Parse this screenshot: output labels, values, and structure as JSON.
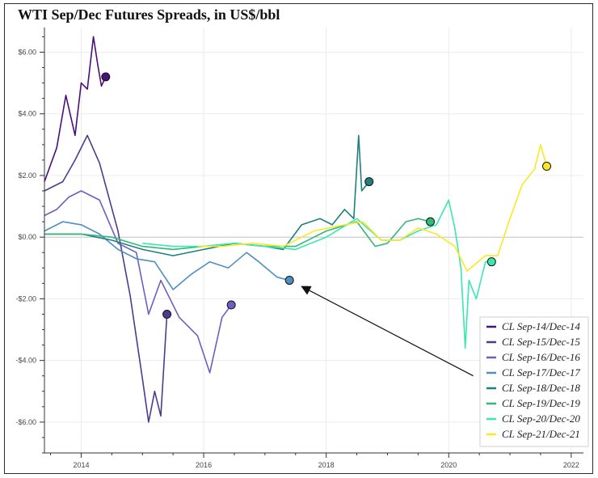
{
  "chart_data": {
    "type": "line",
    "title": "WTI Sep/Dec Futures Spreads, in US$/bbl",
    "xlabel": "",
    "ylabel": "",
    "xlim": [
      2013.4,
      2022.2
    ],
    "ylim": [
      -7.0,
      6.8
    ],
    "x_ticks": [
      2014,
      2016,
      2018,
      2020,
      2022
    ],
    "x_tick_labels": [
      "2014",
      "2016",
      "2018",
      "2020",
      "2022"
    ],
    "y_ticks": [
      6,
      4,
      2,
      0,
      -2,
      -4,
      -6
    ],
    "y_tick_labels": [
      "$6.00",
      "$4.00",
      "$2.00",
      "$0.00",
      "-$2.00",
      "-$4.00",
      "-$6.00"
    ],
    "grid": true,
    "legend_position": "bottom-right",
    "series": [
      {
        "name": "CL Sep-14/Dec-14",
        "color": "#4b0f7a",
        "x": [
          2013.4,
          2013.6,
          2013.75,
          2013.9,
          2014.0,
          2014.1,
          2014.2,
          2014.27,
          2014.33,
          2014.4
        ],
        "y": [
          1.8,
          2.9,
          4.6,
          3.3,
          5.0,
          4.8,
          6.5,
          5.6,
          4.9,
          5.2
        ]
      },
      {
        "name": "CL Sep-15/Dec-15",
        "color": "#4d3b8f",
        "x": [
          2013.4,
          2013.7,
          2013.9,
          2014.1,
          2014.3,
          2014.6,
          2014.8,
          2015.0,
          2015.1,
          2015.2,
          2015.3,
          2015.4
        ],
        "y": [
          1.5,
          1.8,
          2.5,
          3.3,
          2.4,
          0.2,
          -1.9,
          -4.6,
          -6.0,
          -5.0,
          -5.8,
          -2.5
        ]
      },
      {
        "name": "CL Sep-16/Dec-16",
        "color": "#6f5ec2",
        "x": [
          2013.4,
          2013.6,
          2013.8,
          2014.0,
          2014.3,
          2014.6,
          2014.9,
          2015.1,
          2015.3,
          2015.6,
          2015.9,
          2016.1,
          2016.3,
          2016.45
        ],
        "y": [
          0.7,
          0.9,
          1.3,
          1.5,
          1.2,
          -0.2,
          -0.5,
          -2.5,
          -1.4,
          -2.6,
          -3.2,
          -4.4,
          -2.6,
          -2.2
        ]
      },
      {
        "name": "CL Sep-17/Dec-17",
        "color": "#4f8fc1",
        "x": [
          2013.4,
          2013.7,
          2014.0,
          2014.3,
          2014.6,
          2014.9,
          2015.2,
          2015.5,
          2015.8,
          2016.1,
          2016.4,
          2016.7,
          2016.9,
          2017.2,
          2017.4
        ],
        "y": [
          0.2,
          0.5,
          0.4,
          0.1,
          -0.4,
          -0.7,
          -0.8,
          -1.7,
          -1.2,
          -0.8,
          -1.0,
          -0.5,
          -0.8,
          -1.3,
          -1.4
        ]
      },
      {
        "name": "CL Sep-18/Dec-18",
        "color": "#1f7f80",
        "x": [
          2013.4,
          2014.0,
          2014.5,
          2015.0,
          2015.5,
          2016.0,
          2016.5,
          2017.0,
          2017.3,
          2017.6,
          2017.9,
          2018.1,
          2018.3,
          2018.45,
          2018.53,
          2018.58,
          2018.7
        ],
        "y": [
          0.1,
          0.1,
          -0.1,
          -0.4,
          -0.6,
          -0.4,
          -0.2,
          -0.3,
          -0.4,
          0.4,
          0.6,
          0.4,
          0.9,
          0.6,
          3.3,
          1.5,
          1.8
        ]
      },
      {
        "name": "CL Sep-19/Dec-19",
        "color": "#35b779",
        "x": [
          2013.4,
          2014.0,
          2014.5,
          2015.0,
          2015.5,
          2016.0,
          2016.5,
          2017.0,
          2017.5,
          2018.0,
          2018.5,
          2018.8,
          2019.0,
          2019.3,
          2019.5,
          2019.7
        ],
        "y": [
          0.1,
          0.1,
          0.0,
          -0.3,
          -0.4,
          -0.3,
          -0.2,
          -0.3,
          -0.3,
          0.2,
          0.5,
          -0.3,
          -0.2,
          0.5,
          0.6,
          0.5
        ]
      },
      {
        "name": "CL Sep-20/Dec-20",
        "color": "#38e8b0",
        "x": [
          2015.0,
          2015.5,
          2016.0,
          2016.5,
          2017.0,
          2017.5,
          2018.0,
          2018.5,
          2018.9,
          2019.2,
          2019.5,
          2019.8,
          2020.0,
          2020.1,
          2020.2,
          2020.27,
          2020.33,
          2020.45,
          2020.6,
          2020.7
        ],
        "y": [
          -0.2,
          -0.3,
          -0.3,
          -0.2,
          -0.3,
          -0.4,
          0.0,
          0.6,
          -0.1,
          -0.1,
          0.2,
          0.4,
          1.2,
          0.3,
          -1.0,
          -3.6,
          -1.4,
          -2.0,
          -0.8,
          -0.8
        ]
      },
      {
        "name": "CL Sep-21/Dec-21",
        "color": "#fde725",
        "x": [
          2015.9,
          2016.3,
          2016.8,
          2017.3,
          2017.8,
          2018.3,
          2018.6,
          2018.9,
          2019.2,
          2019.5,
          2019.8,
          2020.1,
          2020.3,
          2020.6,
          2020.8,
          2021.0,
          2021.2,
          2021.4,
          2021.5,
          2021.6
        ],
        "y": [
          -0.3,
          -0.3,
          -0.2,
          -0.3,
          0.2,
          0.4,
          0.5,
          -0.1,
          -0.1,
          0.3,
          0.1,
          -0.3,
          -1.1,
          -0.6,
          -0.6,
          0.6,
          1.7,
          2.2,
          3.0,
          2.3
        ]
      }
    ],
    "annotation": {
      "type": "arrow",
      "from": [
        2020.4,
        -4.5
      ],
      "to": [
        2017.6,
        -1.6
      ]
    }
  }
}
